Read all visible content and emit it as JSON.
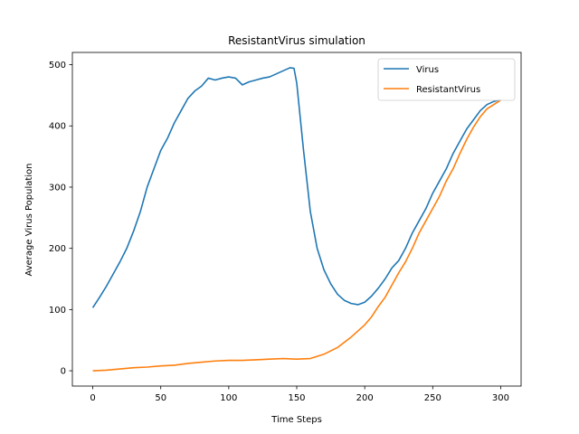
{
  "chart_data": {
    "type": "line",
    "title": "ResistantVirus simulation",
    "xlabel": "Time Steps",
    "ylabel": "Average Virus Population",
    "xlim": [
      -15,
      315
    ],
    "ylim": [
      -25,
      520
    ],
    "xticks": [
      0,
      50,
      100,
      150,
      200,
      250,
      300
    ],
    "yticks": [
      0,
      100,
      200,
      300,
      400,
      500
    ],
    "grid": false,
    "legend_position": "top-right",
    "series": [
      {
        "name": "Virus",
        "color": "#1f77b4",
        "x": [
          0,
          5,
          10,
          15,
          20,
          25,
          30,
          35,
          40,
          45,
          50,
          55,
          60,
          65,
          70,
          75,
          80,
          85,
          90,
          95,
          100,
          105,
          110,
          115,
          120,
          125,
          130,
          135,
          140,
          145,
          148,
          150,
          155,
          160,
          165,
          170,
          175,
          180,
          185,
          190,
          195,
          200,
          205,
          210,
          215,
          220,
          225,
          230,
          235,
          240,
          245,
          250,
          255,
          260,
          265,
          270,
          275,
          280,
          285,
          290,
          295,
          300
        ],
        "y": [
          103,
          120,
          138,
          158,
          178,
          200,
          228,
          260,
          300,
          330,
          360,
          380,
          405,
          425,
          445,
          457,
          465,
          478,
          475,
          478,
          480,
          478,
          467,
          472,
          475,
          478,
          480,
          485,
          490,
          495,
          494,
          470,
          360,
          260,
          200,
          165,
          142,
          125,
          115,
          110,
          108,
          112,
          122,
          135,
          150,
          168,
          180,
          200,
          225,
          245,
          265,
          290,
          310,
          330,
          355,
          375,
          395,
          410,
          425,
          435,
          440,
          443
        ]
      },
      {
        "name": "ResistantVirus",
        "color": "#ff7f0e",
        "x": [
          0,
          10,
          20,
          30,
          40,
          50,
          60,
          70,
          80,
          90,
          100,
          110,
          120,
          130,
          140,
          150,
          160,
          170,
          180,
          190,
          195,
          200,
          205,
          210,
          215,
          220,
          225,
          230,
          235,
          240,
          245,
          250,
          255,
          260,
          265,
          270,
          275,
          280,
          285,
          290,
          295,
          300
        ],
        "y": [
          0,
          1,
          3,
          5,
          6,
          8,
          9,
          12,
          14,
          16,
          17,
          17,
          18,
          19,
          20,
          19,
          20,
          27,
          38,
          55,
          65,
          75,
          88,
          105,
          120,
          140,
          160,
          178,
          200,
          225,
          245,
          265,
          285,
          310,
          330,
          355,
          378,
          398,
          415,
          428,
          435,
          442
        ]
      }
    ]
  }
}
